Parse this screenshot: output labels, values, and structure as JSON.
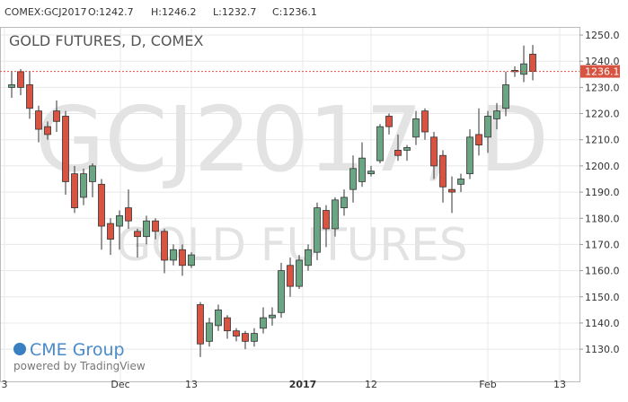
{
  "chart_data": {
    "type": "candlestick",
    "header": {
      "symbol": "COMEX:GCJ2017",
      "open": "O:1242.7",
      "high": "H:1246.2",
      "low": "L:1232.7",
      "close": "C:1236.1"
    },
    "title": "GOLD FUTURES, D, COMEX",
    "watermark": [
      "GCJ2017, D",
      "GOLD FUTURES"
    ],
    "branding": [
      "CME Group",
      "powered by TradingView"
    ],
    "open": [
      1230,
      1236,
      1231,
      1221,
      1215,
      1221,
      1219,
      1197,
      1188,
      1194,
      1193,
      1178,
      1177,
      1184,
      1175,
      1173,
      1179,
      1175,
      1164,
      1168,
      1162,
      1147,
      1133,
      1139,
      1142,
      1137,
      1136,
      1133,
      1138,
      1142,
      1144,
      1162,
      1154,
      1162,
      1167,
      1183,
      1176,
      1184,
      1191,
      1194,
      1197,
      1202,
      1219,
      1206,
      1206,
      1211,
      1221,
      1211,
      1204,
      1191,
      1193,
      1197,
      1212,
      1211,
      1218,
      1222,
      1236.5,
      1235,
      1242.7
    ],
    "high": [
      1236,
      1237,
      1236,
      1223,
      1217,
      1225,
      1221,
      1200,
      1199,
      1201,
      1195,
      1180,
      1183,
      1191,
      1176,
      1181,
      1180,
      1176,
      1170,
      1170,
      1167,
      1148,
      1142,
      1147,
      1143,
      1138,
      1137,
      1138,
      1146,
      1146,
      1163,
      1165,
      1166,
      1170,
      1186,
      1185,
      1188,
      1191,
      1204,
      1209,
      1200,
      1216,
      1220,
      1212,
      1208,
      1221,
      1222,
      1213,
      1206,
      1196,
      1197,
      1214,
      1222,
      1221,
      1224,
      1236,
      1238,
      1246,
      1246.2
    ],
    "low": [
      1226,
      1227,
      1218,
      1209,
      1210,
      1213,
      1189,
      1182,
      1185,
      1188,
      1168,
      1166,
      1168,
      1176,
      1165,
      1170,
      1172,
      1159,
      1162,
      1158,
      1161,
      1127,
      1131,
      1137,
      1134,
      1133,
      1130,
      1131,
      1136,
      1139,
      1142,
      1150,
      1153,
      1160,
      1164,
      1169,
      1173,
      1181,
      1186,
      1192,
      1196,
      1201,
      1212,
      1202,
      1202,
      1208,
      1210,
      1195,
      1186,
      1182,
      1190,
      1195,
      1204,
      1205,
      1214,
      1219,
      1234,
      1232,
      1232.7
    ],
    "close": [
      1231,
      1230,
      1222,
      1214,
      1212,
      1217,
      1194,
      1184,
      1197,
      1200,
      1177,
      1172,
      1181,
      1179,
      1173,
      1179,
      1175,
      1164,
      1168,
      1162,
      1166,
      1132,
      1140,
      1145,
      1137,
      1135,
      1133,
      1136,
      1142,
      1143,
      1160,
      1154,
      1164,
      1168,
      1184,
      1176,
      1187,
      1188,
      1199,
      1203,
      1198,
      1215,
      1215,
      1204,
      1207,
      1218,
      1213,
      1200,
      1192,
      1190,
      1195,
      1211,
      1208,
      1219,
      1221,
      1231,
      1236,
      1239,
      1236.1
    ],
    "up_color": "#6ba583",
    "down_color": "#d75442",
    "last_price": 1236.1,
    "xlim": [
      -1.3,
      63.2
    ],
    "xticks": [
      {
        "value": -0.8,
        "label": "3"
      },
      {
        "value": 12.1,
        "label": "Dec"
      },
      {
        "value": 20,
        "label": "13"
      },
      {
        "value": 32.4,
        "label": "2017"
      },
      {
        "value": 40,
        "label": "12"
      },
      {
        "value": 53,
        "label": "Feb"
      },
      {
        "value": 61,
        "label": "13"
      }
    ],
    "ylim": [
      1117.7,
      1253.1
    ],
    "yticks": [
      {
        "value": 1130,
        "label": "1130.0"
      },
      {
        "value": 1140,
        "label": "1140.0"
      },
      {
        "value": 1150,
        "label": "1150.0"
      },
      {
        "value": 1160,
        "label": "1160.0"
      },
      {
        "value": 1170,
        "label": "1170.0"
      },
      {
        "value": 1180,
        "label": "1180.0"
      },
      {
        "value": 1190,
        "label": "1190.0"
      },
      {
        "value": 1200,
        "label": "1200.0"
      },
      {
        "value": 1210,
        "label": "1210.0"
      },
      {
        "value": 1220,
        "label": "1220.0"
      },
      {
        "value": 1230,
        "label": "1230.0"
      },
      {
        "value": 1240,
        "label": "1240.0"
      },
      {
        "value": 1250,
        "label": "1250.0"
      }
    ],
    "grid": true
  }
}
